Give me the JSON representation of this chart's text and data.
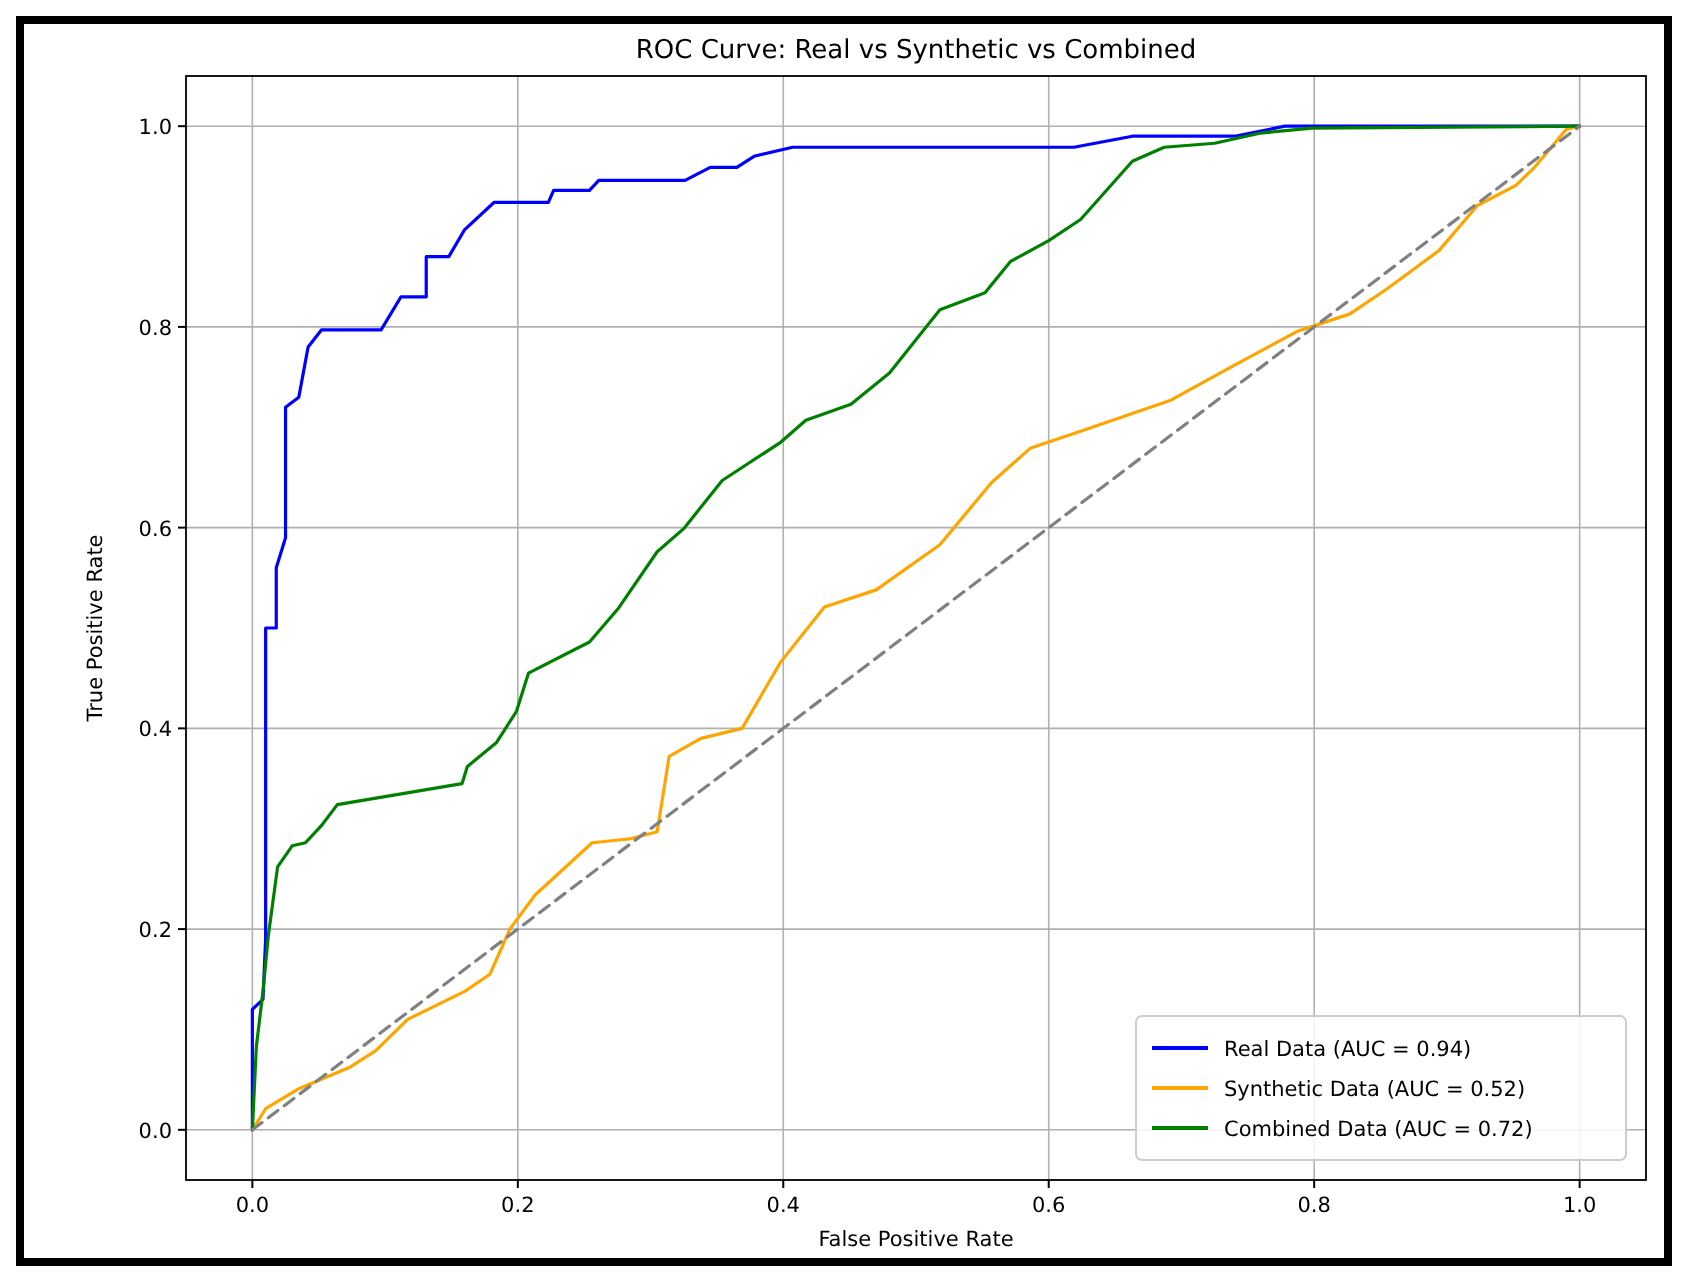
{
  "chart_data": {
    "type": "line",
    "title": "ROC Curve: Real vs Synthetic vs Combined",
    "xlabel": "False Positive Rate",
    "ylabel": "True Positive Rate",
    "xlim": [
      -0.05,
      1.05
    ],
    "ylim": [
      -0.05,
      1.05
    ],
    "xticks": [
      {
        "value": 0,
        "label": "0.0"
      },
      {
        "value": 0.2,
        "label": "0.2"
      },
      {
        "value": 0.4,
        "label": "0.4"
      },
      {
        "value": 0.6,
        "label": "0.6"
      },
      {
        "value": 0.8,
        "label": "0.8"
      },
      {
        "value": 1,
        "label": "1.0"
      }
    ],
    "yticks": [
      {
        "value": 0,
        "label": "0.0"
      },
      {
        "value": 0.2,
        "label": "0.2"
      },
      {
        "value": 0.4,
        "label": "0.4"
      },
      {
        "value": 0.6,
        "label": "0.6"
      },
      {
        "value": 0.8,
        "label": "0.8"
      },
      {
        "value": 1,
        "label": "1.0"
      }
    ],
    "grid": true,
    "legend": "bottom right",
    "marker": "none",
    "series": [
      {
        "name": "Real Data (AUC = 0.94)",
        "color": "#0000ff",
        "x": [
          0,
          0,
          0.008,
          0.01,
          0.01,
          0.018,
          0.018,
          0.025,
          0.025,
          0.035,
          0.042,
          0.052,
          0.097,
          0.112,
          0.131,
          0.131,
          0.148,
          0.16,
          0.182,
          0.223,
          0.227,
          0.254,
          0.261,
          0.326,
          0.345,
          0.365,
          0.378,
          0.407,
          0.619,
          0.663,
          0.74,
          0.778,
          1
        ],
        "values": [
          0,
          0.12,
          0.13,
          0.19,
          0.5,
          0.5,
          0.56,
          0.59,
          0.72,
          0.73,
          0.78,
          0.797,
          0.797,
          0.83,
          0.83,
          0.87,
          0.87,
          0.897,
          0.924,
          0.924,
          0.936,
          0.936,
          0.946,
          0.946,
          0.959,
          0.959,
          0.97,
          0.979,
          0.979,
          0.99,
          0.99,
          1,
          1
        ]
      },
      {
        "name": "Synthetic Data (AUC = 0.52)",
        "color": "#ffa500",
        "x": [
          0,
          0.01,
          0.035,
          0.073,
          0.093,
          0.117,
          0.16,
          0.179,
          0.194,
          0.213,
          0.256,
          0.285,
          0.305,
          0.314,
          0.338,
          0.369,
          0.398,
          0.431,
          0.47,
          0.518,
          0.557,
          0.586,
          0.624,
          0.692,
          0.74,
          0.788,
          0.827,
          0.855,
          0.894,
          0.923,
          0.952,
          0.966,
          0.99,
          1
        ],
        "values": [
          0,
          0.021,
          0.041,
          0.062,
          0.079,
          0.11,
          0.138,
          0.155,
          0.2,
          0.234,
          0.286,
          0.29,
          0.297,
          0.372,
          0.39,
          0.4,
          0.466,
          0.521,
          0.538,
          0.583,
          0.645,
          0.679,
          0.696,
          0.727,
          0.762,
          0.796,
          0.813,
          0.838,
          0.876,
          0.921,
          0.941,
          0.959,
          0.997,
          1
        ]
      },
      {
        "name": "Combined Data (AUC = 0.72)",
        "color": "#008000",
        "x": [
          0,
          0.003,
          0.008,
          0.012,
          0.019,
          0.03,
          0.04,
          0.052,
          0.064,
          0.158,
          0.162,
          0.184,
          0.199,
          0.208,
          0.254,
          0.276,
          0.305,
          0.325,
          0.354,
          0.398,
          0.417,
          0.451,
          0.48,
          0.518,
          0.552,
          0.571,
          0.6,
          0.624,
          0.663,
          0.687,
          0.725,
          0.759,
          0.798,
          1
        ],
        "values": [
          0,
          0.083,
          0.138,
          0.193,
          0.262,
          0.283,
          0.286,
          0.303,
          0.324,
          0.345,
          0.362,
          0.386,
          0.417,
          0.455,
          0.486,
          0.52,
          0.576,
          0.599,
          0.647,
          0.685,
          0.707,
          0.723,
          0.754,
          0.817,
          0.834,
          0.865,
          0.886,
          0.907,
          0.965,
          0.979,
          0.983,
          0.993,
          0.998,
          1
        ]
      },
      {
        "type": "line",
        "color": "#808080",
        "line_style": "dashed",
        "x": [
          0,
          1
        ],
        "values": [
          0,
          1
        ]
      }
    ]
  }
}
